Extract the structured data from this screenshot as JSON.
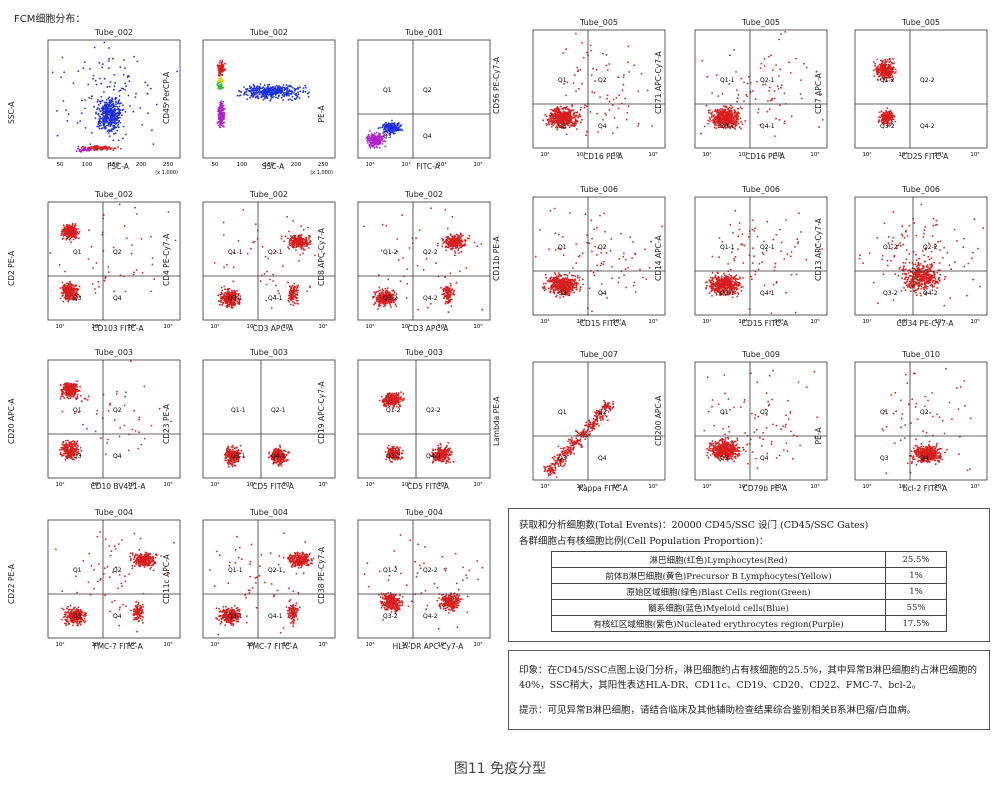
{
  "figure_title": "FCM细胞分布：",
  "caption": "图11 免疫分型",
  "colors": {
    "lymph": "#d91e1e",
    "precursorB": "#e8d800",
    "blast": "#2ec82e",
    "myeloid": "#1a2ee0",
    "erythro": "#b020d0"
  },
  "plots": [
    {
      "title": "Tube_002",
      "ylabel": "SSC-A",
      "xlabel": "FSC-A",
      "type": "scatter-ssc",
      "quadrants": null,
      "ticks_x": [
        "50",
        "100",
        "150",
        "200",
        "250"
      ],
      "note": "(x 1,000)"
    },
    {
      "title": "Tube_002",
      "ylabel": "CD45 PerCP-A",
      "xlabel": "SSC-A",
      "type": "scatter-cd45",
      "quadrants": null,
      "ticks_x": [
        "50",
        "100",
        "150",
        "200",
        "250"
      ],
      "note": "(x 1,000)"
    },
    {
      "title": "Tube_001",
      "ylabel": "PE-A",
      "xlabel": "FITC-A",
      "type": "iso",
      "quadrants": [
        "Q1",
        "Q2",
        "Q3",
        "Q4"
      ],
      "ticks_x": [
        "10²",
        "10³",
        "10⁴",
        "10⁵"
      ]
    },
    {
      "title": "Tube_005",
      "ylabel": "CD56 PE-Cy7-A",
      "xlabel": "CD16 PE-A",
      "type": "clusterLL",
      "quadrants": [
        "Q1",
        "Q2",
        "Q3",
        "Q4"
      ],
      "ticks_x": [
        "10²",
        "10³",
        "10⁴",
        "10⁵"
      ]
    },
    {
      "title": "Tube_005",
      "ylabel": "CD71 APC-Cy7-A",
      "xlabel": "CD16 PE-A",
      "type": "clusterLL",
      "quadrants": [
        "Q1-1",
        "Q2-1",
        "Q3-1",
        "Q4-1"
      ],
      "ticks_x": [
        "10²",
        "10³",
        "10⁴",
        "10⁵"
      ]
    },
    {
      "title": "Tube_005",
      "ylabel": "CD7 APC-A",
      "xlabel": "CD25 FITC-A",
      "type": "twoLeft",
      "quadrants": [
        "Q1-2",
        "Q2-2",
        "Q3-2",
        "Q4-2"
      ],
      "ticks_x": [
        "10²",
        "10³",
        "10⁴",
        "10⁵"
      ]
    },
    {
      "title": "Tube_002",
      "ylabel": "CD2 PE-A",
      "xlabel": "CD103 FITC-A",
      "type": "ULandLL",
      "quadrants": [
        "Q1",
        "Q2",
        "Q3",
        "Q4"
      ],
      "ticks_x": [
        "10²",
        "10³",
        "10⁴",
        "10⁵"
      ]
    },
    {
      "title": "Tube_002",
      "ylabel": "CD4 PE-Cy7-A",
      "xlabel": "CD3 APC-A",
      "type": "URandLL",
      "quadrants": [
        "Q1-1",
        "Q2-1",
        "Q3-1",
        "Q4-1"
      ],
      "ticks_x": [
        "10²",
        "10³",
        "10⁴",
        "10⁵"
      ]
    },
    {
      "title": "Tube_002",
      "ylabel": "CD8 APC-Cy7-A",
      "xlabel": "CD3 APC-A",
      "type": "URandLL",
      "quadrants": [
        "Q1-2",
        "Q2-2",
        "Q3-2",
        "Q4-2"
      ],
      "ticks_x": [
        "10²",
        "10³",
        "10⁴",
        "10⁵"
      ]
    },
    {
      "title": "Tube_006",
      "ylabel": "CD11b PE-A",
      "xlabel": "CD15 FITC-A",
      "type": "clusterLL",
      "quadrants": [
        "Q1",
        "Q2",
        "Q3",
        "Q4"
      ],
      "ticks_x": [
        "10²",
        "10³",
        "10⁴",
        "10⁵"
      ]
    },
    {
      "title": "Tube_006",
      "ylabel": "CD14 APC-A",
      "xlabel": "CD15 FITC-A",
      "type": "clusterLL",
      "quadrants": [
        "Q1-1",
        "Q2-1",
        "Q3-1",
        "Q4-1"
      ],
      "ticks_x": [
        "10²",
        "10³",
        "10⁴",
        "10⁵"
      ]
    },
    {
      "title": "Tube_006",
      "ylabel": "CD13 APC-Cy7-A",
      "xlabel": "CD34 PE-Cy7-A",
      "type": "clusterCenter",
      "quadrants": [
        "Q1-2",
        "Q2-2",
        "Q3-2",
        "Q4-2"
      ],
      "ticks_x": [
        "10²",
        "10³",
        "10⁴",
        "10⁵"
      ]
    },
    {
      "title": "Tube_003",
      "ylabel": "CD20 APC-A",
      "xlabel": "CD10 BV421-A",
      "type": "ULandLL",
      "quadrants": [
        "Q1",
        "Q2",
        "Q3",
        "Q4"
      ],
      "ticks_x": [
        "10²",
        "10³",
        "10⁴",
        "10⁵"
      ]
    },
    {
      "title": "Tube_003",
      "ylabel": "CD23 PE-A",
      "xlabel": "CD5 FITC-A",
      "type": "LLandLR",
      "quadrants": [
        "Q1-1",
        "Q2-1",
        "Q3-1",
        "Q4-1"
      ],
      "ticks_x": [
        "10²",
        "10³",
        "10⁴",
        "10⁵"
      ]
    },
    {
      "title": "Tube_003",
      "ylabel": "CD19 APC-Cy7-A",
      "xlabel": "CD5 FITC-A",
      "type": "ULandLR",
      "quadrants": [
        "Q1-2",
        "Q2-2",
        "Q3-2",
        "Q4-2"
      ],
      "ticks_x": [
        "10²",
        "10³",
        "10⁴",
        "10⁵"
      ]
    },
    {
      "title": "Tube_007",
      "ylabel": "Lambda PE-A",
      "xlabel": "Kappa FITC-A",
      "type": "diagonal",
      "quadrants": [
        "Q1",
        "Q2",
        "Q3",
        "Q4"
      ],
      "ticks_x": [
        "10²",
        "10³",
        "10⁴",
        "10⁵"
      ]
    },
    {
      "title": "Tube_009",
      "ylabel": "CD200 APC-A",
      "xlabel": "CD79b PE-A",
      "type": "clusterLL",
      "quadrants": [
        "Q1",
        "Q2",
        "Q3",
        "Q4"
      ],
      "ticks_x": [
        "10²",
        "10³",
        "10⁴",
        "10⁵"
      ]
    },
    {
      "title": "Tube_010",
      "ylabel": "PE-A",
      "xlabel": "bcl-2 FITC-A",
      "type": "clusterLR",
      "quadrants": [
        "Q1",
        "Q2",
        "Q3",
        "Q4"
      ],
      "ticks_x": [
        "10²",
        "10³",
        "10⁴",
        "10⁵"
      ]
    },
    {
      "title": "Tube_004",
      "ylabel": "CD22 PE-A",
      "xlabel": "FMC-7 FITC-A",
      "type": "URandLL",
      "quadrants": [
        "Q1",
        "Q2",
        "Q3",
        "Q4"
      ],
      "ticks_x": [
        "10²",
        "10³",
        "10⁴",
        "10⁵"
      ]
    },
    {
      "title": "Tube_004",
      "ylabel": "CD11c APC-A",
      "xlabel": "FMC-7 FITC-A",
      "type": "URandLL",
      "quadrants": [
        "Q1-1",
        "Q2-1",
        "Q3-1",
        "Q4-1"
      ],
      "ticks_x": [
        "10²",
        "10³",
        "10⁴",
        "10⁵"
      ]
    },
    {
      "title": "Tube_004",
      "ylabel": "CD38 PE-Cy7-A",
      "xlabel": "HLA-DR APC-Cy7-A",
      "type": "twoBottom",
      "quadrants": [
        "Q1-2",
        "Q2-2",
        "Q3-2",
        "Q4-2"
      ],
      "ticks_x": [
        "10²",
        "10³",
        "10⁴",
        "10⁵"
      ]
    }
  ],
  "summary": {
    "line1": "获取和分析细胞数(Total Events)：20000    CD45/SSC 设门 (CD45/SSC Gates)",
    "line2": "各群细胞占有核细胞比例(Cell Population Proportion)：",
    "rows": [
      {
        "name": "淋巴细胞(红色)Lymphocytes(Red)",
        "value": "25.5%"
      },
      {
        "name": "前体B淋巴细胞(黄色)Precursor B Lymphocytes(Yellow)",
        "value": "1%"
      },
      {
        "name": "原始区域细胞(绿色)Blast Cells region(Green)",
        "value": "1%"
      },
      {
        "name": "髓系细胞(蓝色)Myeloid cells(Blue)",
        "value": "55%"
      },
      {
        "name": "有核红区域细胞(紫色)Nucleated erythrocytes region(Purple)",
        "value": "17.5%"
      }
    ]
  },
  "notes": {
    "impression": "印象：在CD45/SSC点图上设门分析，淋巴细胞约占有核细胞的25.5%，其中异常B淋巴细胞约占淋巴细胞的40%，SSC稍大，其阳性表达HLA-DR、CD11c、CD19、CD20、CD22、FMC-7、bcl-2。",
    "hint": "提示：可见异常B淋巴细胞，请结合临床及其他辅助检查结果综合鉴别相关B系淋巴瘤/白血病。"
  }
}
